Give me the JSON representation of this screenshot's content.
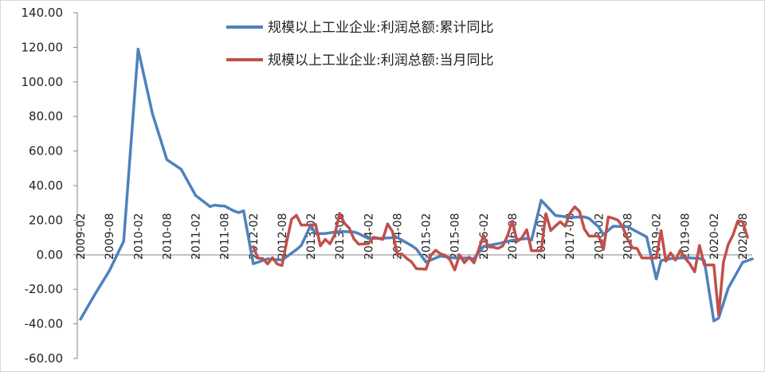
{
  "chart_data": {
    "type": "line",
    "ylim": [
      -60,
      140
    ],
    "y_ticks": [
      "140.00",
      "120.00",
      "100.00",
      "80.00",
      "60.00",
      "40.00",
      "20.00",
      "0.00",
      "-20.00",
      "-40.00",
      "-60.00"
    ],
    "y_tick_values": [
      140,
      120,
      100,
      80,
      60,
      40,
      20,
      0,
      -20,
      -40,
      -60
    ],
    "x_range": [
      "2009-02",
      "2020-10"
    ],
    "x_ticks": [
      "2009-02",
      "2009-08",
      "2010-02",
      "2010-08",
      "2011-02",
      "2011-08",
      "2012-02",
      "2012-08",
      "2013-02",
      "2013-08",
      "2014-02",
      "2014-08",
      "2015-02",
      "2015-08",
      "2016-02",
      "2016-08",
      "2017-02",
      "2017-08",
      "2018-02",
      "2018-08",
      "2019-02",
      "2019-08",
      "2020-02",
      "2020-08"
    ],
    "grid": false,
    "legend": "top-center",
    "series": [
      {
        "name": "规模以上工业企业:利润总额:累计同比",
        "color": "#4f81bd",
        "points": [
          [
            "2009-02",
            -37.3
          ],
          [
            "2009-05",
            -22.9
          ],
          [
            "2009-08",
            -9.4
          ],
          [
            "2009-11",
            7.8
          ],
          [
            "2010-02",
            119.0
          ],
          [
            "2010-05",
            81.6
          ],
          [
            "2010-08",
            55.0
          ],
          [
            "2010-11",
            49.4
          ],
          [
            "2011-02",
            34.3
          ],
          [
            "2011-05",
            27.9
          ],
          [
            "2011-06",
            28.7
          ],
          [
            "2011-07",
            28.3
          ],
          [
            "2011-08",
            28.2
          ],
          [
            "2011-10",
            25.3
          ],
          [
            "2011-11",
            24.4
          ],
          [
            "2011-12",
            25.4
          ],
          [
            "2012-02",
            -5.2
          ],
          [
            "2012-05",
            -2.4
          ],
          [
            "2012-08",
            -3.1
          ],
          [
            "2012-11",
            3.0
          ],
          [
            "2012-12",
            5.3
          ],
          [
            "2013-02",
            17.2
          ],
          [
            "2013-03",
            12.1
          ],
          [
            "2013-05",
            12.3
          ],
          [
            "2013-08",
            13.5
          ],
          [
            "2013-11",
            13.2
          ],
          [
            "2013-12",
            12.2
          ],
          [
            "2014-02",
            9.4
          ],
          [
            "2014-05",
            9.6
          ],
          [
            "2014-08",
            10.0
          ],
          [
            "2014-11",
            5.3
          ],
          [
            "2014-12",
            3.3
          ],
          [
            "2015-02",
            -4.2
          ],
          [
            "2015-05",
            -0.8
          ],
          [
            "2015-08",
            -1.9
          ],
          [
            "2015-11",
            -1.9
          ],
          [
            "2015-12",
            -2.3
          ],
          [
            "2016-02",
            4.8
          ],
          [
            "2016-05",
            6.4
          ],
          [
            "2016-08",
            8.4
          ],
          [
            "2016-11",
            9.4
          ],
          [
            "2016-12",
            8.5
          ],
          [
            "2017-02",
            31.5
          ],
          [
            "2017-05",
            22.7
          ],
          [
            "2017-08",
            21.6
          ],
          [
            "2017-11",
            21.9
          ],
          [
            "2017-12",
            21.0
          ],
          [
            "2018-02",
            16.1
          ],
          [
            "2018-03",
            11.6
          ],
          [
            "2018-05",
            16.5
          ],
          [
            "2018-08",
            16.2
          ],
          [
            "2018-11",
            11.8
          ],
          [
            "2018-12",
            10.3
          ],
          [
            "2019-02",
            -14.0
          ],
          [
            "2019-03",
            -3.3
          ],
          [
            "2019-05",
            -2.3
          ],
          [
            "2019-08",
            -1.7
          ],
          [
            "2019-11",
            -2.1
          ],
          [
            "2019-12",
            -3.3
          ],
          [
            "2020-02",
            -38.3
          ],
          [
            "2020-03",
            -36.7
          ],
          [
            "2020-05",
            -19.3
          ],
          [
            "2020-08",
            -4.4
          ],
          [
            "2020-10",
            -2.4
          ]
        ]
      },
      {
        "name": "规模以上工业企业:利润总额:当月同比",
        "color": "#c0504d",
        "points": [
          [
            "2012-02",
            4.6
          ],
          [
            "2012-03",
            -2.0
          ],
          [
            "2012-04",
            -2.2
          ],
          [
            "2012-05",
            -5.3
          ],
          [
            "2012-06",
            -1.7
          ],
          [
            "2012-07",
            -5.4
          ],
          [
            "2012-08",
            -6.2
          ],
          [
            "2012-09",
            7.8
          ],
          [
            "2012-10",
            20.5
          ],
          [
            "2012-11",
            22.8
          ],
          [
            "2012-12",
            17.2
          ],
          [
            "2013-02",
            17.2
          ],
          [
            "2013-03",
            17.6
          ],
          [
            "2013-04",
            5.1
          ],
          [
            "2013-05",
            8.9
          ],
          [
            "2013-06",
            6.3
          ],
          [
            "2013-07",
            11.6
          ],
          [
            "2013-08",
            24.0
          ],
          [
            "2013-09",
            18.2
          ],
          [
            "2013-10",
            15.5
          ],
          [
            "2013-11",
            9.1
          ],
          [
            "2013-12",
            6.1
          ],
          [
            "2014-02",
            6.4
          ],
          [
            "2014-03",
            10.1
          ],
          [
            "2014-04",
            9.6
          ],
          [
            "2014-05",
            8.9
          ],
          [
            "2014-06",
            17.9
          ],
          [
            "2014-07",
            13.5
          ],
          [
            "2014-08",
            0.4
          ],
          [
            "2014-09",
            0.4
          ],
          [
            "2014-10",
            -2.1
          ],
          [
            "2014-11",
            -4.2
          ],
          [
            "2014-12",
            -8.0
          ],
          [
            "2015-02",
            -8.4
          ],
          [
            "2015-03",
            -0.4
          ],
          [
            "2015-04",
            2.6
          ],
          [
            "2015-05",
            0.6
          ],
          [
            "2015-06",
            -0.3
          ],
          [
            "2015-07",
            -2.9
          ],
          [
            "2015-08",
            -8.8
          ],
          [
            "2015-09",
            -0.1
          ],
          [
            "2015-10",
            -4.6
          ],
          [
            "2015-11",
            -1.4
          ],
          [
            "2015-12",
            -4.7
          ],
          [
            "2016-02",
            11.1
          ],
          [
            "2016-03",
            4.6
          ],
          [
            "2016-04",
            4.4
          ],
          [
            "2016-05",
            3.7
          ],
          [
            "2016-06",
            5.1
          ],
          [
            "2016-07",
            11.0
          ],
          [
            "2016-08",
            19.5
          ],
          [
            "2016-09",
            7.7
          ],
          [
            "2016-10",
            9.8
          ],
          [
            "2016-11",
            14.5
          ],
          [
            "2016-12",
            2.3
          ],
          [
            "2017-02",
            2.3
          ],
          [
            "2017-03",
            23.8
          ],
          [
            "2017-04",
            14.0
          ],
          [
            "2017-05",
            16.7
          ],
          [
            "2017-06",
            19.1
          ],
          [
            "2017-07",
            16.5
          ],
          [
            "2017-08",
            24.0
          ],
          [
            "2017-09",
            27.7
          ],
          [
            "2017-10",
            25.1
          ],
          [
            "2017-11",
            14.9
          ],
          [
            "2017-12",
            10.8
          ],
          [
            "2018-02",
            10.8
          ],
          [
            "2018-03",
            3.1
          ],
          [
            "2018-04",
            21.9
          ],
          [
            "2018-05",
            21.1
          ],
          [
            "2018-06",
            20.0
          ],
          [
            "2018-07",
            16.2
          ],
          [
            "2018-08",
            9.2
          ],
          [
            "2018-09",
            4.1
          ],
          [
            "2018-10",
            3.6
          ],
          [
            "2018-11",
            -1.8
          ],
          [
            "2018-12",
            -1.9
          ],
          [
            "2019-02",
            -1.9
          ],
          [
            "2019-03",
            13.9
          ],
          [
            "2019-04",
            -3.7
          ],
          [
            "2019-05",
            1.1
          ],
          [
            "2019-06",
            -3.1
          ],
          [
            "2019-07",
            2.6
          ],
          [
            "2019-08",
            -2.0
          ],
          [
            "2019-09",
            -5.3
          ],
          [
            "2019-10",
            -9.9
          ],
          [
            "2019-11",
            5.4
          ],
          [
            "2019-12",
            -5.9
          ],
          [
            "2020-02",
            -5.9
          ],
          [
            "2020-03",
            -34.9
          ],
          [
            "2020-04",
            -4.3
          ],
          [
            "2020-05",
            6.0
          ],
          [
            "2020-06",
            11.5
          ],
          [
            "2020-07",
            19.6
          ],
          [
            "2020-08",
            19.1
          ],
          [
            "2020-09",
            10.1
          ]
        ]
      }
    ]
  }
}
